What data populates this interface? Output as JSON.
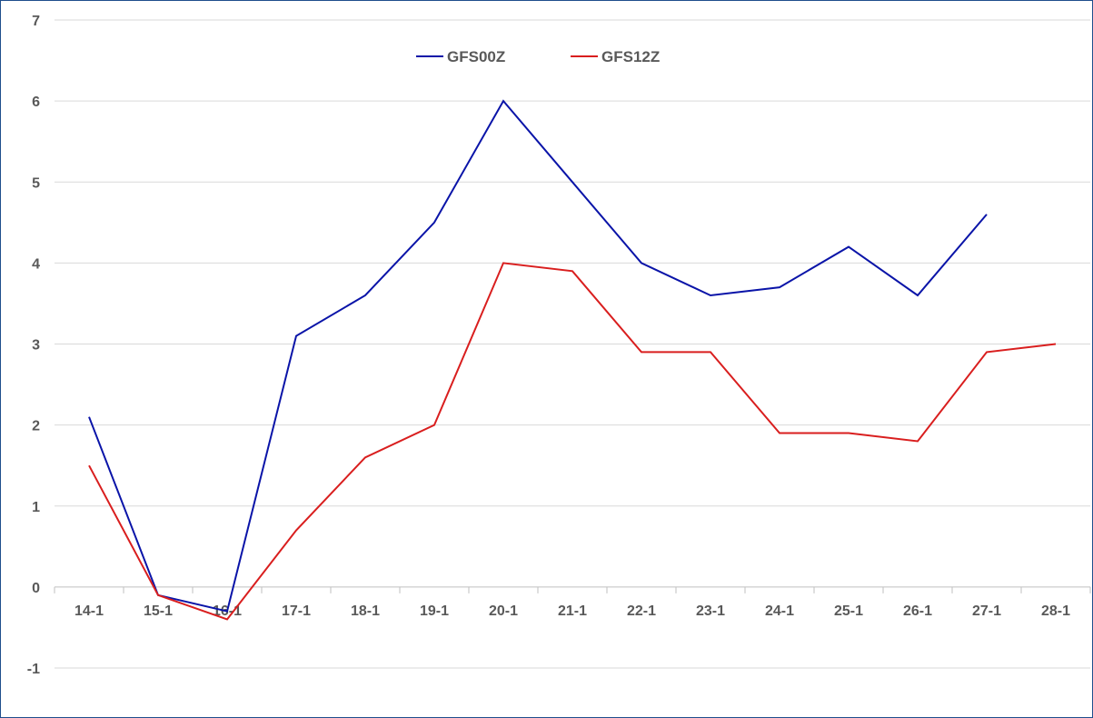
{
  "chart_data": {
    "type": "line",
    "title": "",
    "xlabel": "",
    "ylabel": "",
    "categories": [
      "14-1",
      "15-1",
      "16-1",
      "17-1",
      "18-1",
      "19-1",
      "20-1",
      "21-1",
      "22-1",
      "23-1",
      "24-1",
      "25-1",
      "26-1",
      "27-1",
      "28-1"
    ],
    "ylim": [
      -1,
      7
    ],
    "yticks": [
      -1,
      0,
      1,
      2,
      3,
      4,
      5,
      6,
      7
    ],
    "grid": true,
    "legend": "top-center",
    "series": [
      {
        "name": "GFS00Z",
        "color": "#0a14a8",
        "values": [
          2.1,
          -0.1,
          -0.3,
          3.1,
          3.6,
          4.5,
          6.0,
          5.0,
          4.0,
          3.6,
          3.7,
          4.2,
          3.6,
          4.6,
          null
        ]
      },
      {
        "name": "GFS12Z",
        "color": "#d91e1e",
        "values": [
          1.5,
          -0.1,
          -0.4,
          0.7,
          1.6,
          2.0,
          4.0,
          3.9,
          2.9,
          2.9,
          1.9,
          1.9,
          1.8,
          2.9,
          3.0
        ]
      }
    ]
  }
}
